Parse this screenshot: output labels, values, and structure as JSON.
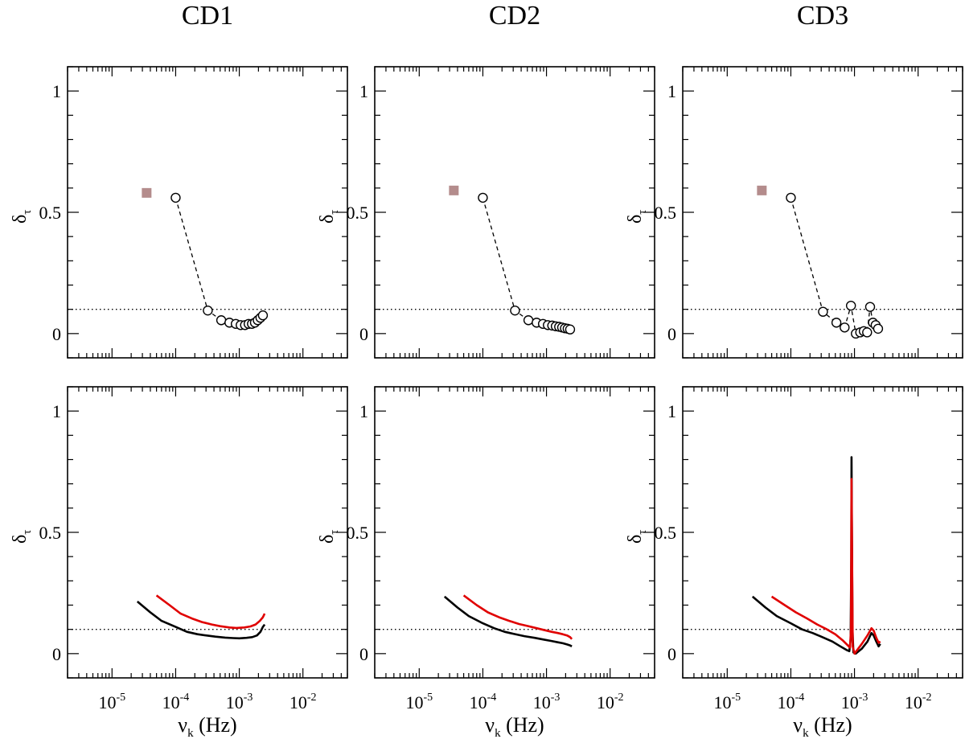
{
  "figure": {
    "xlabel_main": "ν",
    "xlabel_sub": "k",
    "xlabel_unit": " (Hz)",
    "ylabel_main": "δ",
    "ylabel_sub": "τ",
    "x_tick_base": "10",
    "x_tick_exponents": [
      "-5",
      "-4",
      "-3",
      "-2"
    ],
    "y_tick_labels": [
      "0",
      "0.5",
      "1"
    ]
  },
  "colors": {
    "marker_square": "#b48c8c",
    "line_black": "#000000",
    "line_red": "#e00000",
    "axes": "#000000"
  },
  "chart_data": [
    {
      "type": "scatter",
      "panel": "top",
      "column": "CD1",
      "title": "CD1",
      "x_scale": "log",
      "xlim": [
        2e-06,
        0.05
      ],
      "ylim": [
        -0.1,
        1.1
      ],
      "reference_line": 0.1,
      "square_point": {
        "x": 3.5e-05,
        "y": 0.58
      },
      "series": [
        {
          "values": [
            [
              0.0001,
              0.56
            ],
            [
              0.00032,
              0.095
            ],
            [
              0.00052,
              0.055
            ],
            [
              0.0007,
              0.045
            ],
            [
              0.00088,
              0.04
            ],
            [
              0.00105,
              0.035
            ],
            [
              0.00123,
              0.035
            ],
            [
              0.0014,
              0.04
            ],
            [
              0.00158,
              0.04
            ],
            [
              0.00176,
              0.045
            ],
            [
              0.00195,
              0.055
            ],
            [
              0.00215,
              0.065
            ],
            [
              0.00235,
              0.075
            ]
          ]
        }
      ]
    },
    {
      "type": "scatter",
      "panel": "top",
      "column": "CD2",
      "title": "CD2",
      "x_scale": "log",
      "xlim": [
        2e-06,
        0.05
      ],
      "ylim": [
        -0.1,
        1.1
      ],
      "reference_line": 0.1,
      "square_point": {
        "x": 3.5e-05,
        "y": 0.59
      },
      "series": [
        {
          "values": [
            [
              0.0001,
              0.56
            ],
            [
              0.00032,
              0.095
            ],
            [
              0.00052,
              0.055
            ],
            [
              0.0007,
              0.045
            ],
            [
              0.00088,
              0.04
            ],
            [
              0.00105,
              0.035
            ],
            [
              0.00123,
              0.033
            ],
            [
              0.0014,
              0.03
            ],
            [
              0.00158,
              0.028
            ],
            [
              0.00176,
              0.025
            ],
            [
              0.00195,
              0.022
            ],
            [
              0.00215,
              0.02
            ],
            [
              0.00235,
              0.017
            ]
          ]
        }
      ]
    },
    {
      "type": "scatter",
      "panel": "top",
      "column": "CD3",
      "title": "CD3",
      "x_scale": "log",
      "xlim": [
        2e-06,
        0.05
      ],
      "ylim": [
        -0.1,
        1.1
      ],
      "reference_line": 0.1,
      "square_point": {
        "x": 3.5e-05,
        "y": 0.59
      },
      "series": [
        {
          "values": [
            [
              0.0001,
              0.56
            ],
            [
              0.00032,
              0.09
            ],
            [
              0.00052,
              0.045
            ],
            [
              0.0007,
              0.025
            ],
            [
              0.00088,
              0.115
            ],
            [
              0.00105,
              0.0
            ],
            [
              0.00123,
              0.005
            ],
            [
              0.0014,
              0.01
            ],
            [
              0.00158,
              0.005
            ],
            [
              0.00176,
              0.11
            ],
            [
              0.00195,
              0.045
            ],
            [
              0.00215,
              0.035
            ],
            [
              0.00235,
              0.02
            ]
          ]
        }
      ]
    },
    {
      "type": "line",
      "panel": "bottom",
      "column": "CD1",
      "x_scale": "log",
      "xlim": [
        2e-06,
        0.05
      ],
      "ylim": [
        -0.1,
        1.1
      ],
      "reference_line": 0.1,
      "series": [
        {
          "color": "#000000",
          "values": [
            [
              2.5e-05,
              0.215
            ],
            [
              4e-05,
              0.17
            ],
            [
              6e-05,
              0.135
            ],
            [
              0.0001,
              0.11
            ],
            [
              0.00015,
              0.09
            ],
            [
              0.00022,
              0.08
            ],
            [
              0.0003,
              0.075
            ],
            [
              0.00042,
              0.07
            ],
            [
              0.0006,
              0.066
            ],
            [
              0.0008,
              0.064
            ],
            [
              0.001,
              0.063
            ],
            [
              0.0013,
              0.065
            ],
            [
              0.0016,
              0.068
            ],
            [
              0.0019,
              0.075
            ],
            [
              0.00215,
              0.09
            ],
            [
              0.00235,
              0.11
            ],
            [
              0.0025,
              0.12
            ]
          ]
        },
        {
          "color": "#e00000",
          "values": [
            [
              5e-05,
              0.24
            ],
            [
              8e-05,
              0.2
            ],
            [
              0.00012,
              0.165
            ],
            [
              0.00018,
              0.145
            ],
            [
              0.00026,
              0.13
            ],
            [
              0.00037,
              0.12
            ],
            [
              0.0005,
              0.113
            ],
            [
              0.0007,
              0.108
            ],
            [
              0.0009,
              0.106
            ],
            [
              0.0012,
              0.108
            ],
            [
              0.0015,
              0.112
            ],
            [
              0.0018,
              0.12
            ],
            [
              0.0021,
              0.135
            ],
            [
              0.00235,
              0.15
            ],
            [
              0.0025,
              0.165
            ]
          ]
        }
      ]
    },
    {
      "type": "line",
      "panel": "bottom",
      "column": "CD2",
      "x_scale": "log",
      "xlim": [
        2e-06,
        0.05
      ],
      "ylim": [
        -0.1,
        1.1
      ],
      "reference_line": 0.1,
      "series": [
        {
          "color": "#000000",
          "values": [
            [
              2.5e-05,
              0.235
            ],
            [
              4e-05,
              0.19
            ],
            [
              6e-05,
              0.155
            ],
            [
              0.0001,
              0.125
            ],
            [
              0.00015,
              0.105
            ],
            [
              0.00022,
              0.09
            ],
            [
              0.0003,
              0.082
            ],
            [
              0.00045,
              0.072
            ],
            [
              0.00065,
              0.065
            ],
            [
              0.0009,
              0.058
            ],
            [
              0.0012,
              0.052
            ],
            [
              0.0015,
              0.047
            ],
            [
              0.0018,
              0.043
            ],
            [
              0.0021,
              0.038
            ],
            [
              0.00235,
              0.034
            ],
            [
              0.0025,
              0.03
            ]
          ]
        },
        {
          "color": "#e00000",
          "values": [
            [
              5e-05,
              0.24
            ],
            [
              8e-05,
              0.2
            ],
            [
              0.00012,
              0.17
            ],
            [
              0.00018,
              0.15
            ],
            [
              0.00026,
              0.135
            ],
            [
              0.00037,
              0.122
            ],
            [
              0.0005,
              0.114
            ],
            [
              0.0007,
              0.105
            ],
            [
              0.0009,
              0.098
            ],
            [
              0.0012,
              0.09
            ],
            [
              0.0015,
              0.085
            ],
            [
              0.0018,
              0.08
            ],
            [
              0.0021,
              0.075
            ],
            [
              0.00235,
              0.068
            ],
            [
              0.0025,
              0.06
            ]
          ]
        }
      ]
    },
    {
      "type": "line",
      "panel": "bottom",
      "column": "CD3",
      "x_scale": "log",
      "xlim": [
        2e-06,
        0.05
      ],
      "ylim": [
        -0.1,
        1.1
      ],
      "reference_line": 0.1,
      "series": [
        {
          "color": "#000000",
          "values": [
            [
              2.5e-05,
              0.235
            ],
            [
              4e-05,
              0.19
            ],
            [
              6e-05,
              0.155
            ],
            [
              0.0001,
              0.125
            ],
            [
              0.00015,
              0.1
            ],
            [
              0.00022,
              0.085
            ],
            [
              0.0003,
              0.07
            ],
            [
              0.00045,
              0.05
            ],
            [
              0.0006,
              0.03
            ],
            [
              0.00075,
              0.015
            ],
            [
              0.00083,
              0.01
            ],
            [
              0.00087,
              0.06
            ],
            [
              0.00089,
              0.4
            ],
            [
              0.0009,
              0.81
            ],
            [
              0.00091,
              0.55
            ],
            [
              0.00093,
              0.1
            ],
            [
              0.00096,
              0.005
            ],
            [
              0.00105,
              0.0
            ],
            [
              0.0013,
              0.02
            ],
            [
              0.0016,
              0.05
            ],
            [
              0.00185,
              0.085
            ],
            [
              0.002,
              0.075
            ],
            [
              0.0022,
              0.05
            ],
            [
              0.0024,
              0.03
            ],
            [
              0.00255,
              0.04
            ]
          ]
        },
        {
          "color": "#e00000",
          "values": [
            [
              5e-05,
              0.235
            ],
            [
              8e-05,
              0.2
            ],
            [
              0.00012,
              0.17
            ],
            [
              0.00018,
              0.145
            ],
            [
              0.00026,
              0.12
            ],
            [
              0.00037,
              0.1
            ],
            [
              0.0005,
              0.08
            ],
            [
              0.00065,
              0.055
            ],
            [
              0.00078,
              0.035
            ],
            [
              0.00085,
              0.025
            ],
            [
              0.00088,
              0.1
            ],
            [
              0.0009,
              0.72
            ],
            [
              0.00092,
              0.35
            ],
            [
              0.00094,
              0.03
            ],
            [
              0.001,
              0.0
            ],
            [
              0.0013,
              0.04
            ],
            [
              0.0016,
              0.075
            ],
            [
              0.00185,
              0.105
            ],
            [
              0.002,
              0.095
            ],
            [
              0.0022,
              0.065
            ],
            [
              0.0024,
              0.045
            ],
            [
              0.00255,
              0.05
            ]
          ]
        }
      ]
    }
  ]
}
